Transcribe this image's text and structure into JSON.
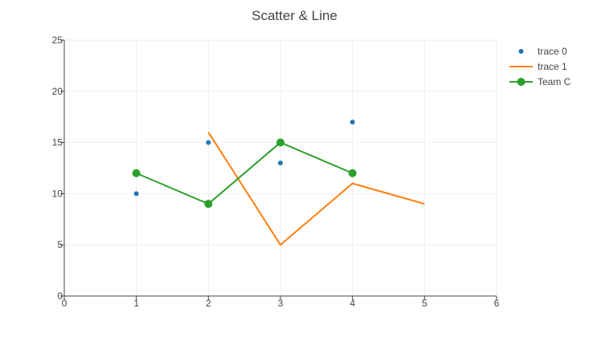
{
  "chart_data": {
    "type": "scatter",
    "title": "Scatter & Line",
    "xlabel": "",
    "ylabel": "",
    "xlim": [
      0,
      6
    ],
    "ylim": [
      0,
      25
    ],
    "xticks": [
      0,
      1,
      2,
      3,
      4,
      5,
      6
    ],
    "yticks": [
      0,
      5,
      10,
      15,
      20,
      25
    ],
    "grid": true,
    "legend_position": "top-right",
    "series": [
      {
        "name": "trace 0",
        "mode": "markers",
        "color": "#1f77b4",
        "x": [
          1,
          2,
          3,
          4
        ],
        "y": [
          10,
          15,
          13,
          17
        ]
      },
      {
        "name": "trace 1",
        "mode": "lines",
        "color": "#ff7f0e",
        "x": [
          2,
          3,
          4,
          5
        ],
        "y": [
          16,
          5,
          11,
          9
        ]
      },
      {
        "name": "Team C",
        "mode": "lines+markers",
        "color": "#2ca02c",
        "x": [
          1,
          2,
          3,
          4
        ],
        "y": [
          12,
          9,
          15,
          12
        ]
      }
    ]
  }
}
